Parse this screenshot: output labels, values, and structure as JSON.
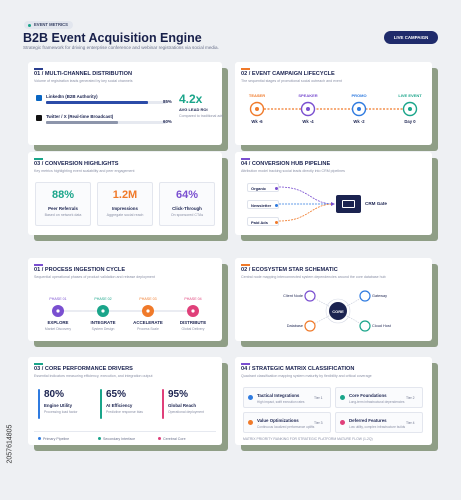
{
  "header": {
    "tag": "EVENT METRICS",
    "title": "B2B Event Acquisition Engine",
    "subtitle": "Strategic framework for driving enterprise conference and webinar registrations via social media.",
    "button": "LIVE CAMPAIGN"
  },
  "distribution": {
    "title": "01 / MULTI-CHANNEL DISTRIBUTION",
    "subtitle": "Volume of registration leads generated by key social channels",
    "channels": [
      {
        "name": "LinkedIn (B2B Authority)",
        "value": 85,
        "label": "85%"
      },
      {
        "name": "Twitter / X (Real-time Broadcast)",
        "value": 60,
        "label": "60%"
      }
    ],
    "stat": "4.2x",
    "stat_label": "AVG LEAD ROI",
    "stat_note": "Compared to traditional ads"
  },
  "lifecycle": {
    "title": "02 / EVENT CAMPAIGN LIFECYCLE",
    "subtitle": "The sequential stages of promotional social outreach and event",
    "stages": [
      {
        "name": "TEASER",
        "time": "Wk -6"
      },
      {
        "name": "SPEAKER",
        "time": "Wk -4"
      },
      {
        "name": "PROMO",
        "time": "Wk -2"
      },
      {
        "name": "LIVE EVENT",
        "time": "Day 0"
      }
    ]
  },
  "highlights": {
    "title": "03 / CONVERSION HIGHLIGHTS",
    "subtitle": "Key metrics highlighting event scalability and peer engagement",
    "stats": [
      {
        "value": "88%",
        "label": "Peer Referrals",
        "note": "Based on network data"
      },
      {
        "value": "1.2M",
        "label": "Impressions",
        "note": "Aggregate social reach"
      },
      {
        "value": "64%",
        "label": "Click-Through",
        "note": "On sponsored CTAs"
      }
    ]
  },
  "pipeline": {
    "title": "04 / CONVERSION HUB PIPELINE",
    "subtitle": "Attribution model tracking social leads directly into CRM pipelines",
    "sources": [
      "Organic",
      "Newsletter",
      "Paid Ads"
    ],
    "target": "CRM Gate"
  },
  "ingestion": {
    "title": "01 / PROCESS INGESTION CYCLE",
    "subtitle": "Sequential operational phases of product validation and release deployment",
    "phases": [
      {
        "phase": "PHASE 01",
        "name": "EXPLORE",
        "note": "Market Discovery"
      },
      {
        "phase": "PHASE 02",
        "name": "INTEGRATE",
        "note": "System Design"
      },
      {
        "phase": "PHASE 03",
        "name": "ACCELERATE",
        "note": "Process Scale"
      },
      {
        "phase": "PHASE 04",
        "name": "DISTRIBUTE",
        "note": "Global Delivery"
      }
    ]
  },
  "ecosystem": {
    "title": "02 / ECOSYSTEM STAR SCHEMATIC",
    "subtitle": "Central node mapping interconnected system dependencies around the core database hub",
    "center": "CORE",
    "nodes": [
      "Client Node",
      "Gateway",
      "Database",
      "Cloud Host"
    ]
  },
  "drivers": {
    "title": "03 / CORE PERFORMANCE DRIVERS",
    "subtitle": "Essential indicators measuring efficiency, execution, and integration output",
    "items": [
      {
        "value": "80%",
        "label": "Engine Utility",
        "note": "Processing load factor"
      },
      {
        "value": "65%",
        "label": "AI Efficiency",
        "note": "Predictive response bias"
      },
      {
        "value": "95%",
        "label": "Global Reach",
        "note": "Operational deployment"
      }
    ],
    "legend": [
      "Primary Pipeline",
      "Secondary Interface",
      "Cerebral Core"
    ]
  },
  "matrix": {
    "title": "04 / STRATEGIC MATRIX CLASSIFICATION",
    "subtitle": "Quadrant classification mapping system maturity by flexibility and critical coverage",
    "quadrants": [
      {
        "name": "Tactical Integrations",
        "note": "High impact, swift execution rates",
        "tier": "Tier 1"
      },
      {
        "name": "Core Foundations",
        "note": "Long-term infrastructural dependencies",
        "tier": "Tier 2"
      },
      {
        "name": "Value Optimizations",
        "note": "Continuous localized performance uplifts",
        "tier": "Tier 3"
      },
      {
        "name": "Deferred Features",
        "note": "Low utility, complex infrastructure builds",
        "tier": "Tier 4"
      }
    ],
    "footer": "MATRIX PRIORITY RANKING FOR STRATEGIC PLATFORM MATURE FLOW (1-2Q)"
  },
  "stock_id": "2057614805"
}
